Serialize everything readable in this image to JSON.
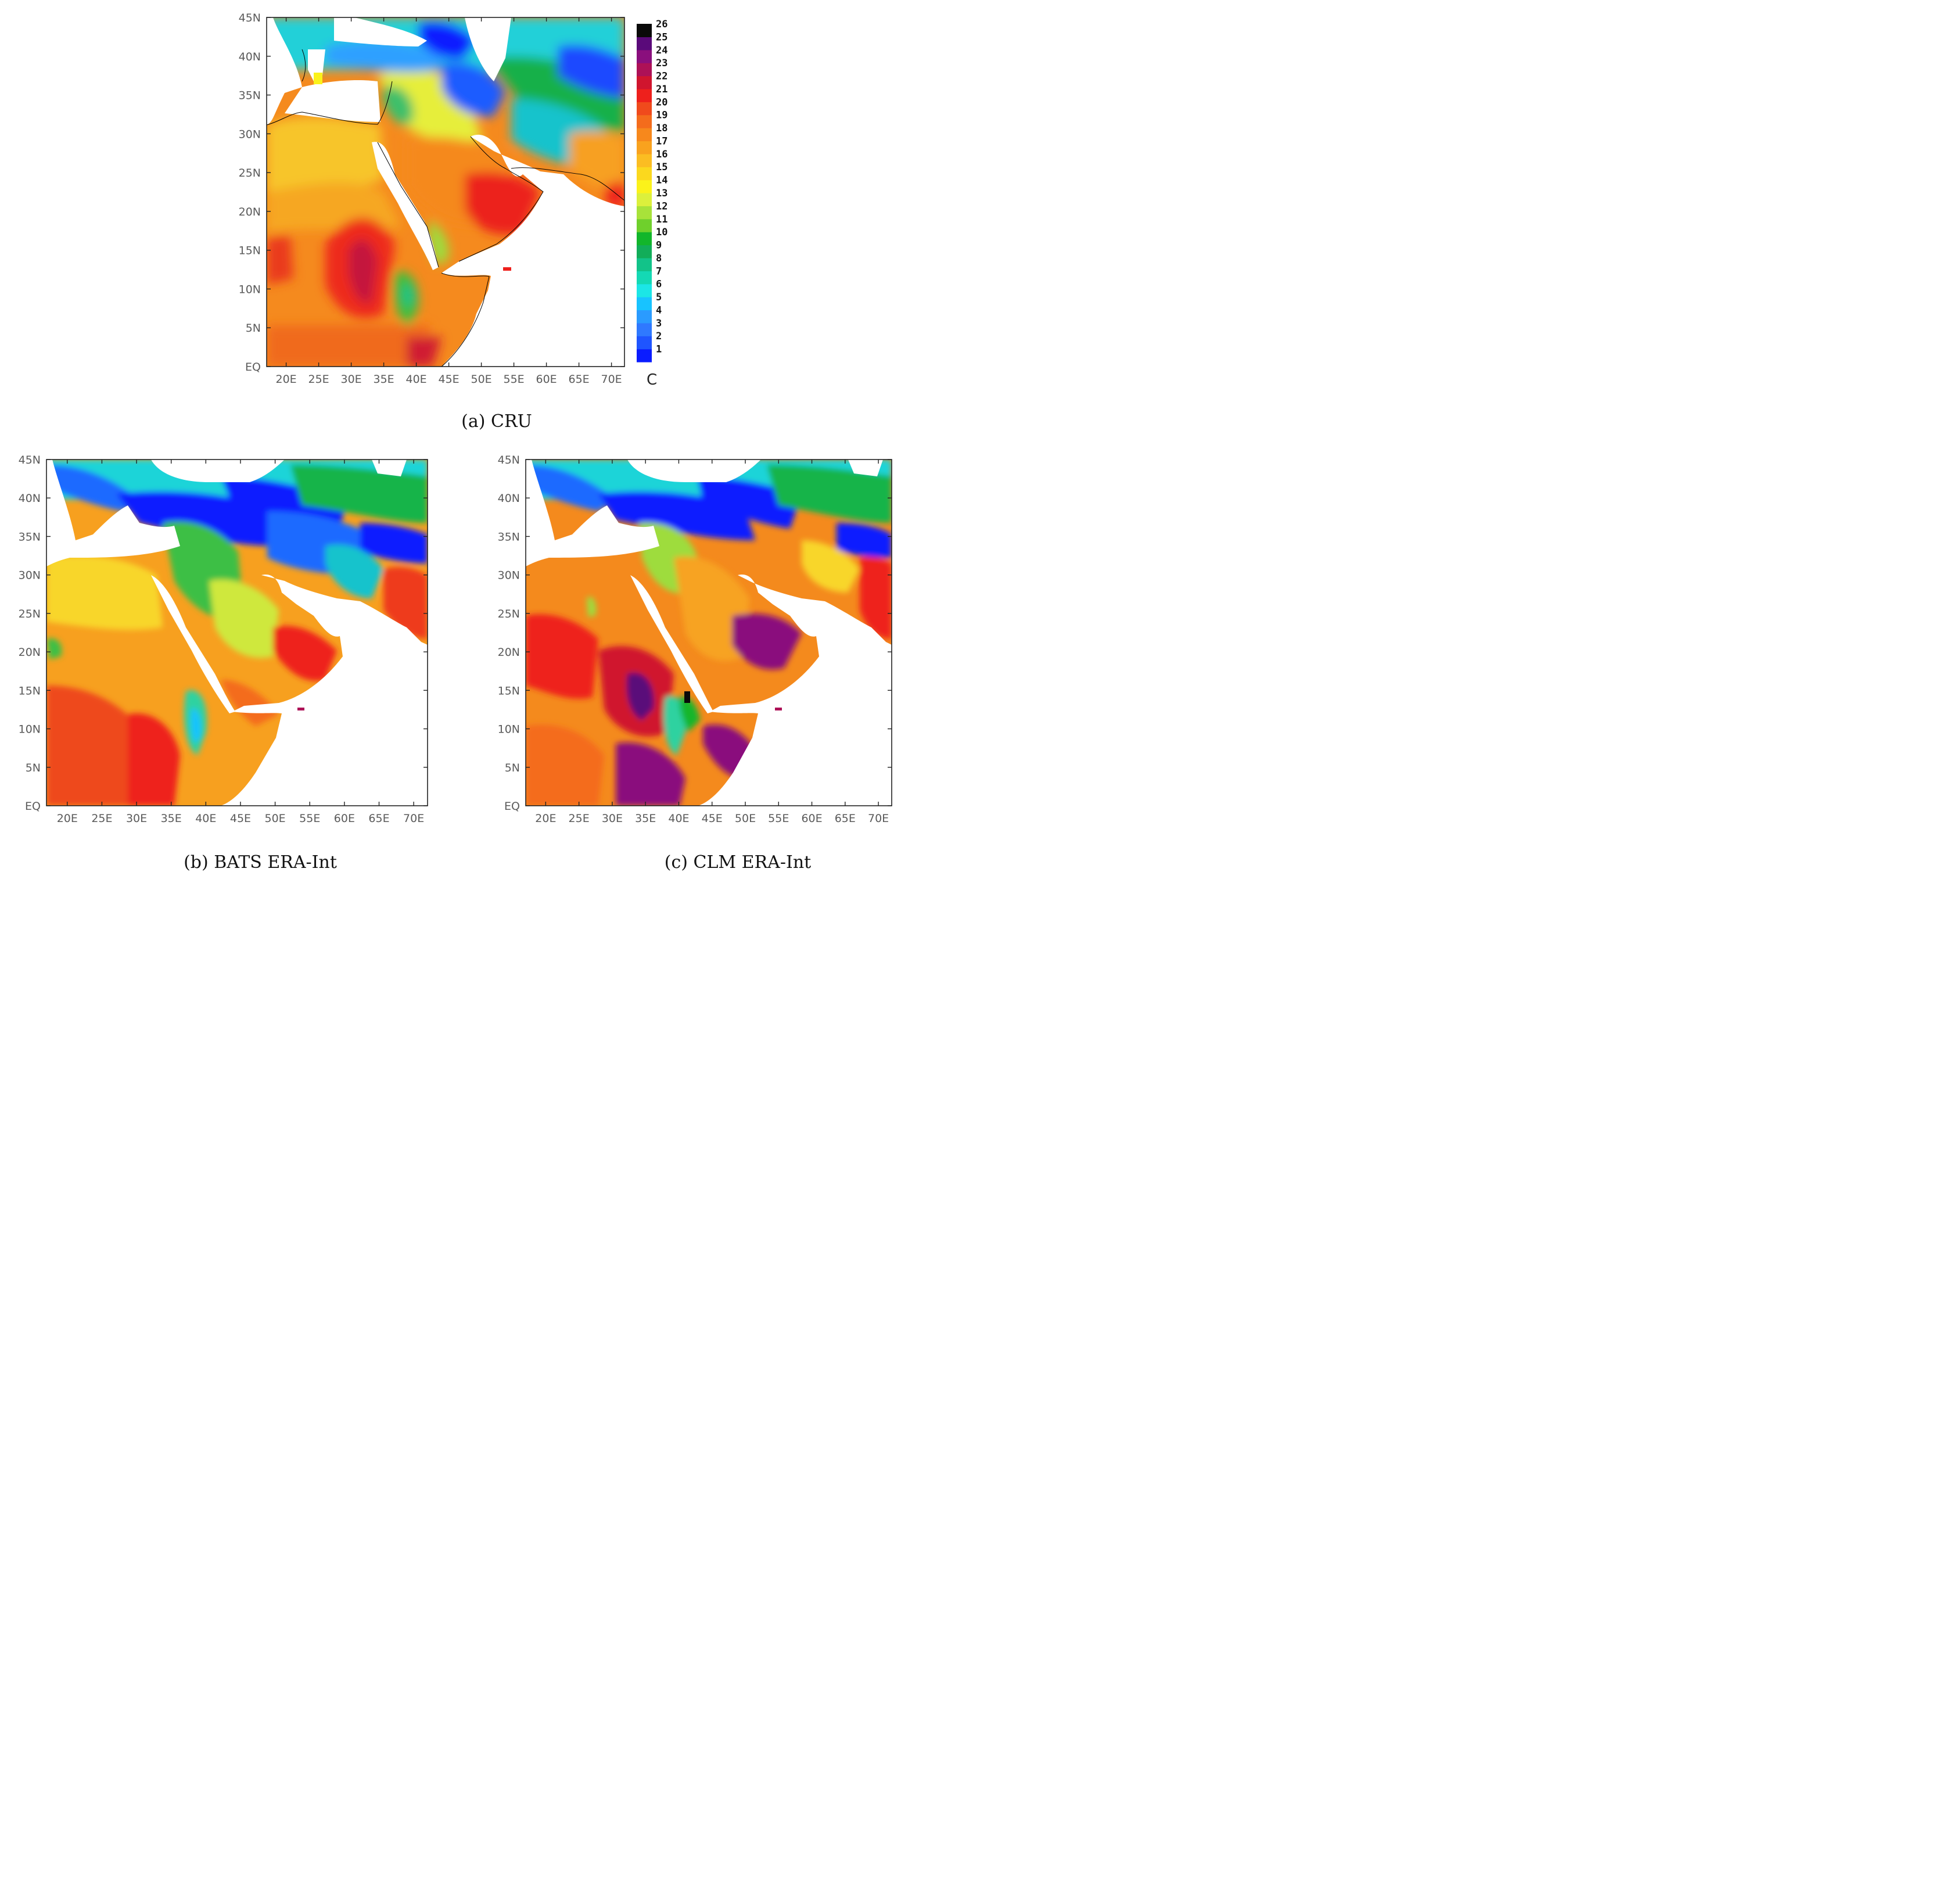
{
  "panels": [
    {
      "id": "cru",
      "caption": "(a) CRU"
    },
    {
      "id": "bats",
      "caption": "(b) BATS ERA-Int"
    },
    {
      "id": "clm",
      "caption": "(c) CLM ERA-Int"
    }
  ],
  "axes": {
    "lat_labels": [
      "EQ",
      "5N",
      "10N",
      "15N",
      "20N",
      "25N",
      "30N",
      "35N",
      "40N",
      "45N"
    ],
    "lon_labels": [
      "20E",
      "25E",
      "30E",
      "35E",
      "40E",
      "45E",
      "50E",
      "55E",
      "60E",
      "65E",
      "70E"
    ]
  },
  "colorbar": {
    "unit": "C",
    "labels": [
      "1",
      "2",
      "3",
      "4",
      "5",
      "6",
      "7",
      "8",
      "9",
      "10",
      "11",
      "12",
      "13",
      "14",
      "15",
      "16",
      "17",
      "18",
      "19",
      "20",
      "21",
      "22",
      "23",
      "24",
      "25",
      "26"
    ],
    "colors": [
      "#0a1cff",
      "#1f55ff",
      "#2f79ff",
      "#2a9bff",
      "#18c3ff",
      "#1ce6e6",
      "#14d9b4",
      "#12c389",
      "#12ad59",
      "#12b62b",
      "#6fd02c",
      "#a8e23a",
      "#dcf03c",
      "#fbf21a",
      "#fbd81e",
      "#fbbd22",
      "#f9a21e",
      "#f7881c",
      "#f46c1c",
      "#f04a1c",
      "#ee201c",
      "#d0152e",
      "#ad1157",
      "#8a0f7d",
      "#5a0a7a",
      "#0a0a0a"
    ]
  }
}
